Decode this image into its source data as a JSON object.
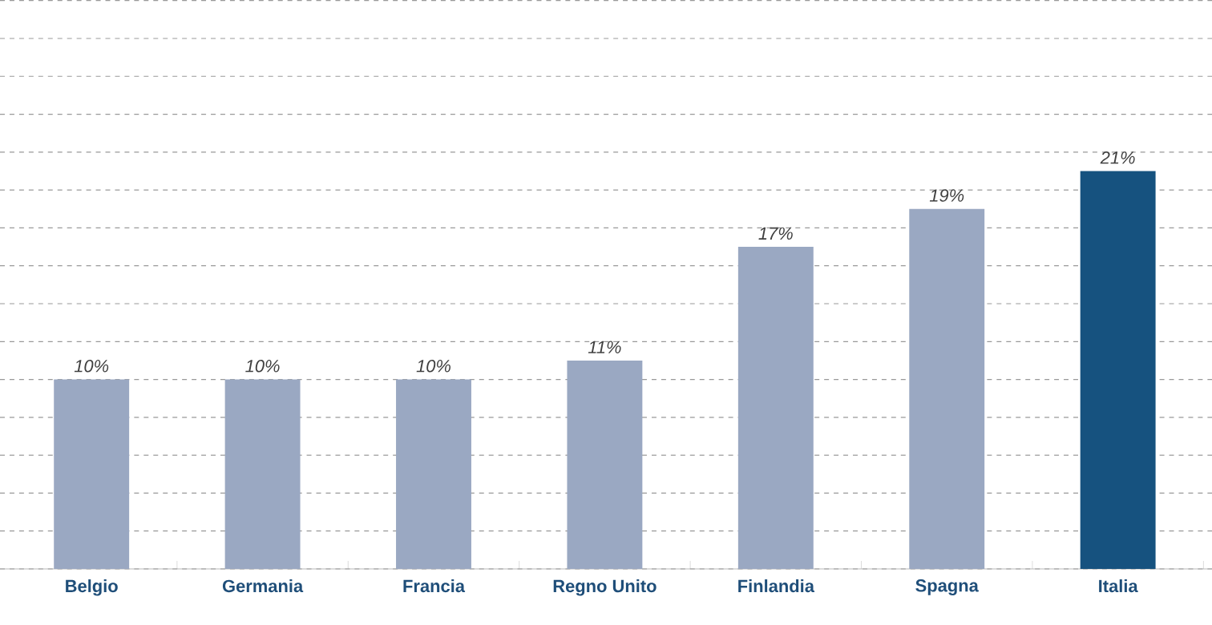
{
  "chart_data": {
    "type": "bar",
    "categories": [
      "Belgio",
      "Germania",
      "Francia",
      "Regno Unito",
      "Finlandia",
      "Spagna",
      "Italia"
    ],
    "values": [
      10,
      10,
      10,
      11,
      17,
      19,
      21
    ],
    "value_labels": [
      "10%",
      "10%",
      "10%",
      "11%",
      "17%",
      "19%",
      "21%"
    ],
    "colors": [
      "#9aa8c2",
      "#9aa8c2",
      "#9aa8c2",
      "#9aa8c2",
      "#9aa8c2",
      "#9aa8c2",
      "#16527f"
    ],
    "grid": "y",
    "tick_labels": "x"
  }
}
